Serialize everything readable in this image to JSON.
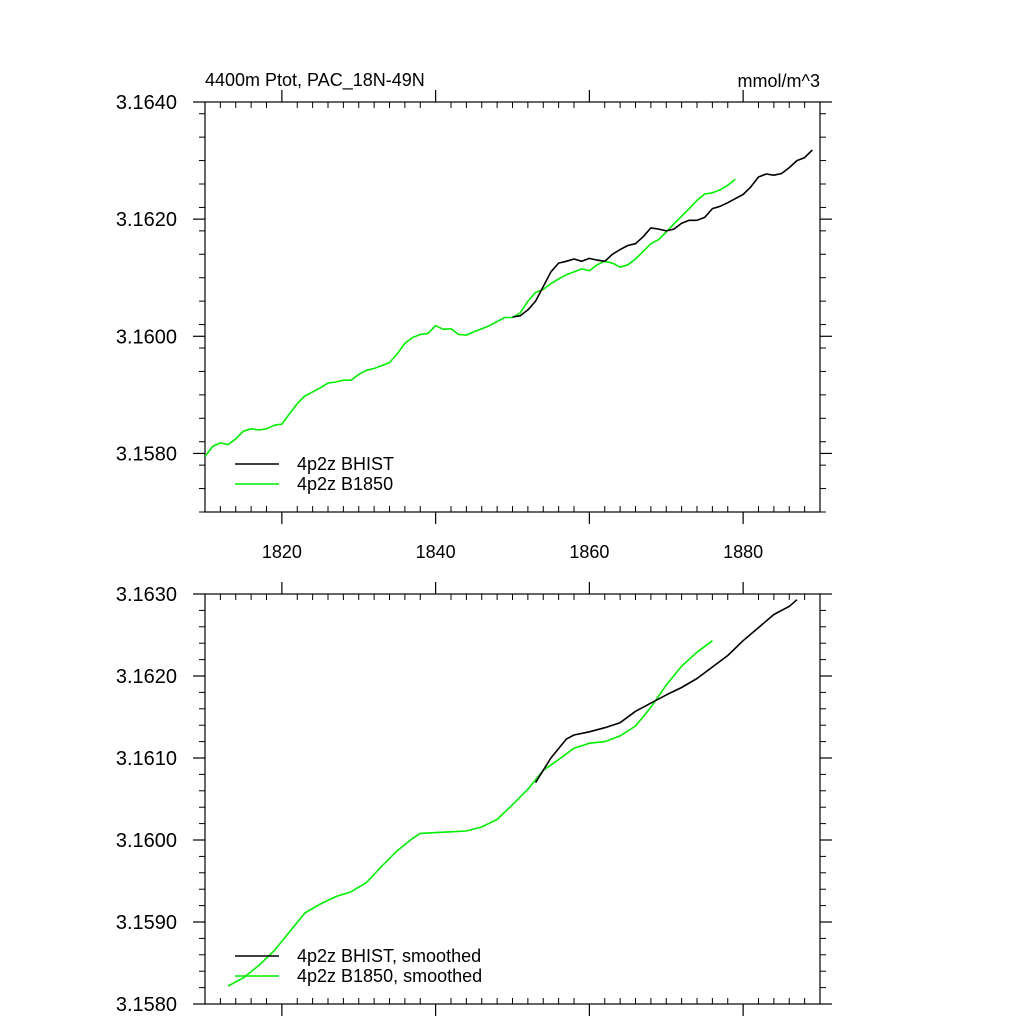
{
  "chart_data": [
    {
      "type": "line",
      "title": "4400m Ptot, PAC_18N-49N",
      "units": "mmol/m^3",
      "xlim": [
        1810,
        1890
      ],
      "ylim": [
        3.157,
        3.164
      ],
      "x_ticks": [
        1820,
        1840,
        1860,
        1880
      ],
      "x_tick_labels": [
        "1820",
        "1840",
        "1860",
        "1880"
      ],
      "y_ticks": [
        3.158,
        3.16,
        3.162,
        3.164
      ],
      "y_tick_labels": [
        "3.1580",
        "3.1600",
        "3.1620",
        "3.1640"
      ],
      "grid": false,
      "legend_position": "bottom-left",
      "series": [
        {
          "name": "4p2z BHIST",
          "color": "#000000",
          "points": [
            [
              1850,
              3.16033
            ],
            [
              1851,
              3.16035
            ],
            [
              1852,
              3.16045
            ],
            [
              1853,
              3.1606
            ],
            [
              1854,
              3.16085
            ],
            [
              1855,
              3.1611
            ],
            [
              1856,
              3.16125
            ],
            [
              1857,
              3.16128
            ],
            [
              1858,
              3.16132
            ],
            [
              1859,
              3.16128
            ],
            [
              1860,
              3.16133
            ],
            [
              1861,
              3.1613
            ],
            [
              1862,
              3.16128
            ],
            [
              1863,
              3.1614
            ],
            [
              1864,
              3.16148
            ],
            [
              1865,
              3.16155
            ],
            [
              1866,
              3.16158
            ],
            [
              1867,
              3.1617
            ],
            [
              1868,
              3.16185
            ],
            [
              1869,
              3.16183
            ],
            [
              1870,
              3.1618
            ],
            [
              1871,
              3.16183
            ],
            [
              1872,
              3.16193
            ],
            [
              1873,
              3.16198
            ],
            [
              1874,
              3.16198
            ],
            [
              1875,
              3.16203
            ],
            [
              1876,
              3.16218
            ],
            [
              1877,
              3.16222
            ],
            [
              1878,
              3.16228
            ],
            [
              1879,
              3.16235
            ],
            [
              1880,
              3.16242
            ],
            [
              1881,
              3.16255
            ],
            [
              1882,
              3.16272
            ],
            [
              1883,
              3.16277
            ],
            [
              1884,
              3.16275
            ],
            [
              1885,
              3.16278
            ],
            [
              1886,
              3.16288
            ],
            [
              1887,
              3.163
            ],
            [
              1888,
              3.16305
            ],
            [
              1889,
              3.16318
            ]
          ]
        },
        {
          "name": "4p2z B1850",
          "color": "#00ee00",
          "points": [
            [
              1810,
              3.15795
            ],
            [
              1811,
              3.15812
            ],
            [
              1812,
              3.15818
            ],
            [
              1813,
              3.15815
            ],
            [
              1814,
              3.15825
            ],
            [
              1815,
              3.15838
            ],
            [
              1816,
              3.15842
            ],
            [
              1817,
              3.1584
            ],
            [
              1818,
              3.15842
            ],
            [
              1819,
              3.15848
            ],
            [
              1820,
              3.1585
            ],
            [
              1821,
              3.15868
            ],
            [
              1822,
              3.15885
            ],
            [
              1823,
              3.15898
            ],
            [
              1824,
              3.15905
            ],
            [
              1825,
              3.15912
            ],
            [
              1826,
              3.1592
            ],
            [
              1827,
              3.15922
            ],
            [
              1828,
              3.15925
            ],
            [
              1829,
              3.15925
            ],
            [
              1830,
              3.15935
            ],
            [
              1831,
              3.15942
            ],
            [
              1832,
              3.15945
            ],
            [
              1833,
              3.1595
            ],
            [
              1834,
              3.15955
            ],
            [
              1835,
              3.1597
            ],
            [
              1836,
              3.15988
            ],
            [
              1837,
              3.15998
            ],
            [
              1838,
              3.16003
            ],
            [
              1839,
              3.16005
            ],
            [
              1840,
              3.16018
            ],
            [
              1841,
              3.16012
            ],
            [
              1842,
              3.16013
            ],
            [
              1843,
              3.16003
            ],
            [
              1844,
              3.16002
            ],
            [
              1845,
              3.16008
            ],
            [
              1846,
              3.16013
            ],
            [
              1847,
              3.16018
            ],
            [
              1848,
              3.16025
            ],
            [
              1849,
              3.16032
            ],
            [
              1850,
              3.16032
            ],
            [
              1851,
              3.1604
            ],
            [
              1852,
              3.1606
            ],
            [
              1853,
              3.16075
            ],
            [
              1854,
              3.1608
            ],
            [
              1855,
              3.1609
            ],
            [
              1856,
              3.16098
            ],
            [
              1857,
              3.16105
            ],
            [
              1858,
              3.1611
            ],
            [
              1859,
              3.16115
            ],
            [
              1860,
              3.16112
            ],
            [
              1861,
              3.16122
            ],
            [
              1862,
              3.16128
            ],
            [
              1863,
              3.16125
            ],
            [
              1864,
              3.16118
            ],
            [
              1865,
              3.16122
            ],
            [
              1866,
              3.16132
            ],
            [
              1867,
              3.16145
            ],
            [
              1868,
              3.16158
            ],
            [
              1869,
              3.16165
            ],
            [
              1870,
              3.16178
            ],
            [
              1871,
              3.16192
            ],
            [
              1872,
              3.16205
            ],
            [
              1873,
              3.16218
            ],
            [
              1874,
              3.16232
            ],
            [
              1875,
              3.16243
            ],
            [
              1876,
              3.16245
            ],
            [
              1877,
              3.1625
            ],
            [
              1878,
              3.16258
            ],
            [
              1879,
              3.16268
            ]
          ]
        }
      ]
    },
    {
      "type": "line",
      "title": "",
      "units": "",
      "xlim": [
        1810,
        1890
      ],
      "ylim": [
        3.158,
        3.163
      ],
      "x_ticks": [
        1820,
        1840,
        1860,
        1880
      ],
      "x_tick_labels": [
        "",
        "",
        "",
        ""
      ],
      "y_ticks": [
        3.158,
        3.159,
        3.16,
        3.161,
        3.162,
        3.163
      ],
      "y_tick_labels": [
        "3.1580",
        "3.1590",
        "3.1600",
        "3.1610",
        "3.1620",
        "3.1630"
      ],
      "grid": false,
      "legend_position": "bottom-left",
      "series": [
        {
          "name": "4p2z BHIST, smoothed",
          "color": "#000000",
          "points": [
            [
              1853,
              3.1607
            ],
            [
              1855,
              3.161
            ],
            [
              1857,
              3.16123
            ],
            [
              1858,
              3.16128
            ],
            [
              1860,
              3.16132
            ],
            [
              1862,
              3.16137
            ],
            [
              1864,
              3.16143
            ],
            [
              1866,
              3.16157
            ],
            [
              1868,
              3.16167
            ],
            [
              1870,
              3.16177
            ],
            [
              1872,
              3.16186
            ],
            [
              1874,
              3.16197
            ],
            [
              1876,
              3.16211
            ],
            [
              1878,
              3.16225
            ],
            [
              1880,
              3.16243
            ],
            [
              1882,
              3.16259
            ],
            [
              1884,
              3.16275
            ],
            [
              1886,
              3.16285
            ],
            [
              1887,
              3.16293
            ]
          ]
        },
        {
          "name": "4p2z B1850, smoothed",
          "color": "#00ee00",
          "points": [
            [
              1813,
              3.15822
            ],
            [
              1815,
              3.15832
            ],
            [
              1817,
              3.15847
            ],
            [
              1819,
              3.15865
            ],
            [
              1821,
              3.15888
            ],
            [
              1823,
              3.15911
            ],
            [
              1825,
              3.15922
            ],
            [
              1827,
              3.15931
            ],
            [
              1829,
              3.15937
            ],
            [
              1831,
              3.15948
            ],
            [
              1833,
              3.15968
            ],
            [
              1835,
              3.15987
            ],
            [
              1837,
              3.16002
            ],
            [
              1838,
              3.16008
            ],
            [
              1840,
              3.16009
            ],
            [
              1842,
              3.1601
            ],
            [
              1844,
              3.16011
            ],
            [
              1846,
              3.16016
            ],
            [
              1848,
              3.16025
            ],
            [
              1850,
              3.16043
            ],
            [
              1852,
              3.16062
            ],
            [
              1854,
              3.16085
            ],
            [
              1856,
              3.16098
            ],
            [
              1858,
              3.16112
            ],
            [
              1860,
              3.16118
            ],
            [
              1862,
              3.1612
            ],
            [
              1864,
              3.16127
            ],
            [
              1866,
              3.16139
            ],
            [
              1868,
              3.16162
            ],
            [
              1870,
              3.16189
            ],
            [
              1872,
              3.16212
            ],
            [
              1874,
              3.16229
            ],
            [
              1876,
              3.16243
            ]
          ]
        }
      ]
    }
  ]
}
